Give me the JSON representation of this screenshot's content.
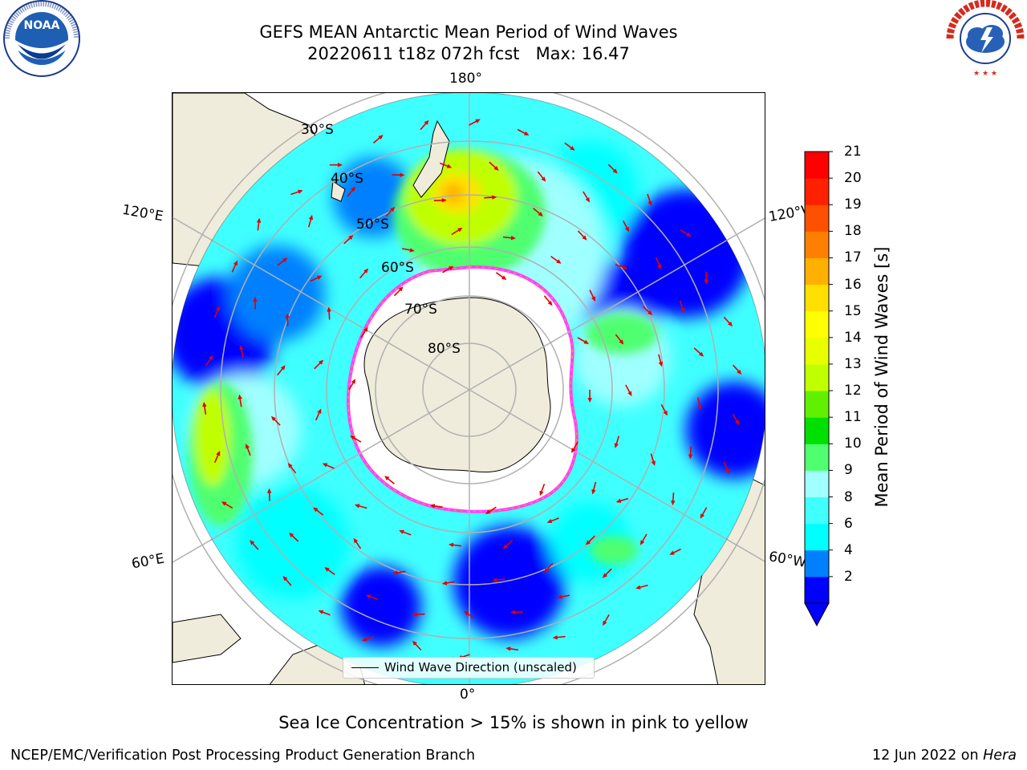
{
  "header": {
    "title_line1": "GEFS MEAN Antarctic Mean Period of Wind Waves",
    "title_line2": "20220611 t18z 072h fcst   Max: 16.47"
  },
  "logos": {
    "left": "NOAA",
    "right": "NATIONAL WEATHER SERVICE"
  },
  "map": {
    "projection": "south polar stereographic",
    "lon_labels": {
      "top": "180°",
      "bottom": "0°",
      "upper_left": "120°E",
      "upper_right": "120°W",
      "lower_left": "60°E",
      "lower_right": "60°W"
    },
    "lat_labels": [
      "30°S",
      "40°S",
      "50°S",
      "60°S",
      "70°S",
      "80°S"
    ],
    "land_color": "#efecdc",
    "ice_color": "#ffffff",
    "ice_edge_colors": [
      "#ff40ff",
      "#ffb000"
    ],
    "arrow_color": "#e00000"
  },
  "legend": {
    "label": "Wind Wave Direction (unscaled)"
  },
  "colorbar": {
    "label": "Mean Period of Wind Waves [s]",
    "ticks": [
      "21",
      "20",
      "19",
      "18",
      "17",
      "16",
      "15",
      "14",
      "13",
      "12",
      "11",
      "10",
      "9",
      "8",
      "6",
      "4",
      "2"
    ],
    "colors": [
      "#0000ff",
      "#0080ff",
      "#00ffff",
      "#40ffff",
      "#a0ffff",
      "#50ff70",
      "#00e000",
      "#60f000",
      "#c0ff00",
      "#e8ff00",
      "#ffff00",
      "#ffe000",
      "#ffb000",
      "#ff8000",
      "#ff5000",
      "#ff2000",
      "#ff0000"
    ]
  },
  "footer": {
    "ice_note": "Sea Ice Concentration > 15% is shown in pink to yellow",
    "left": "NCEP/EMC/Verification Post Processing Product Generation Branch",
    "right_prefix": "12 Jun 2022 on ",
    "right_machine": "Hera"
  }
}
